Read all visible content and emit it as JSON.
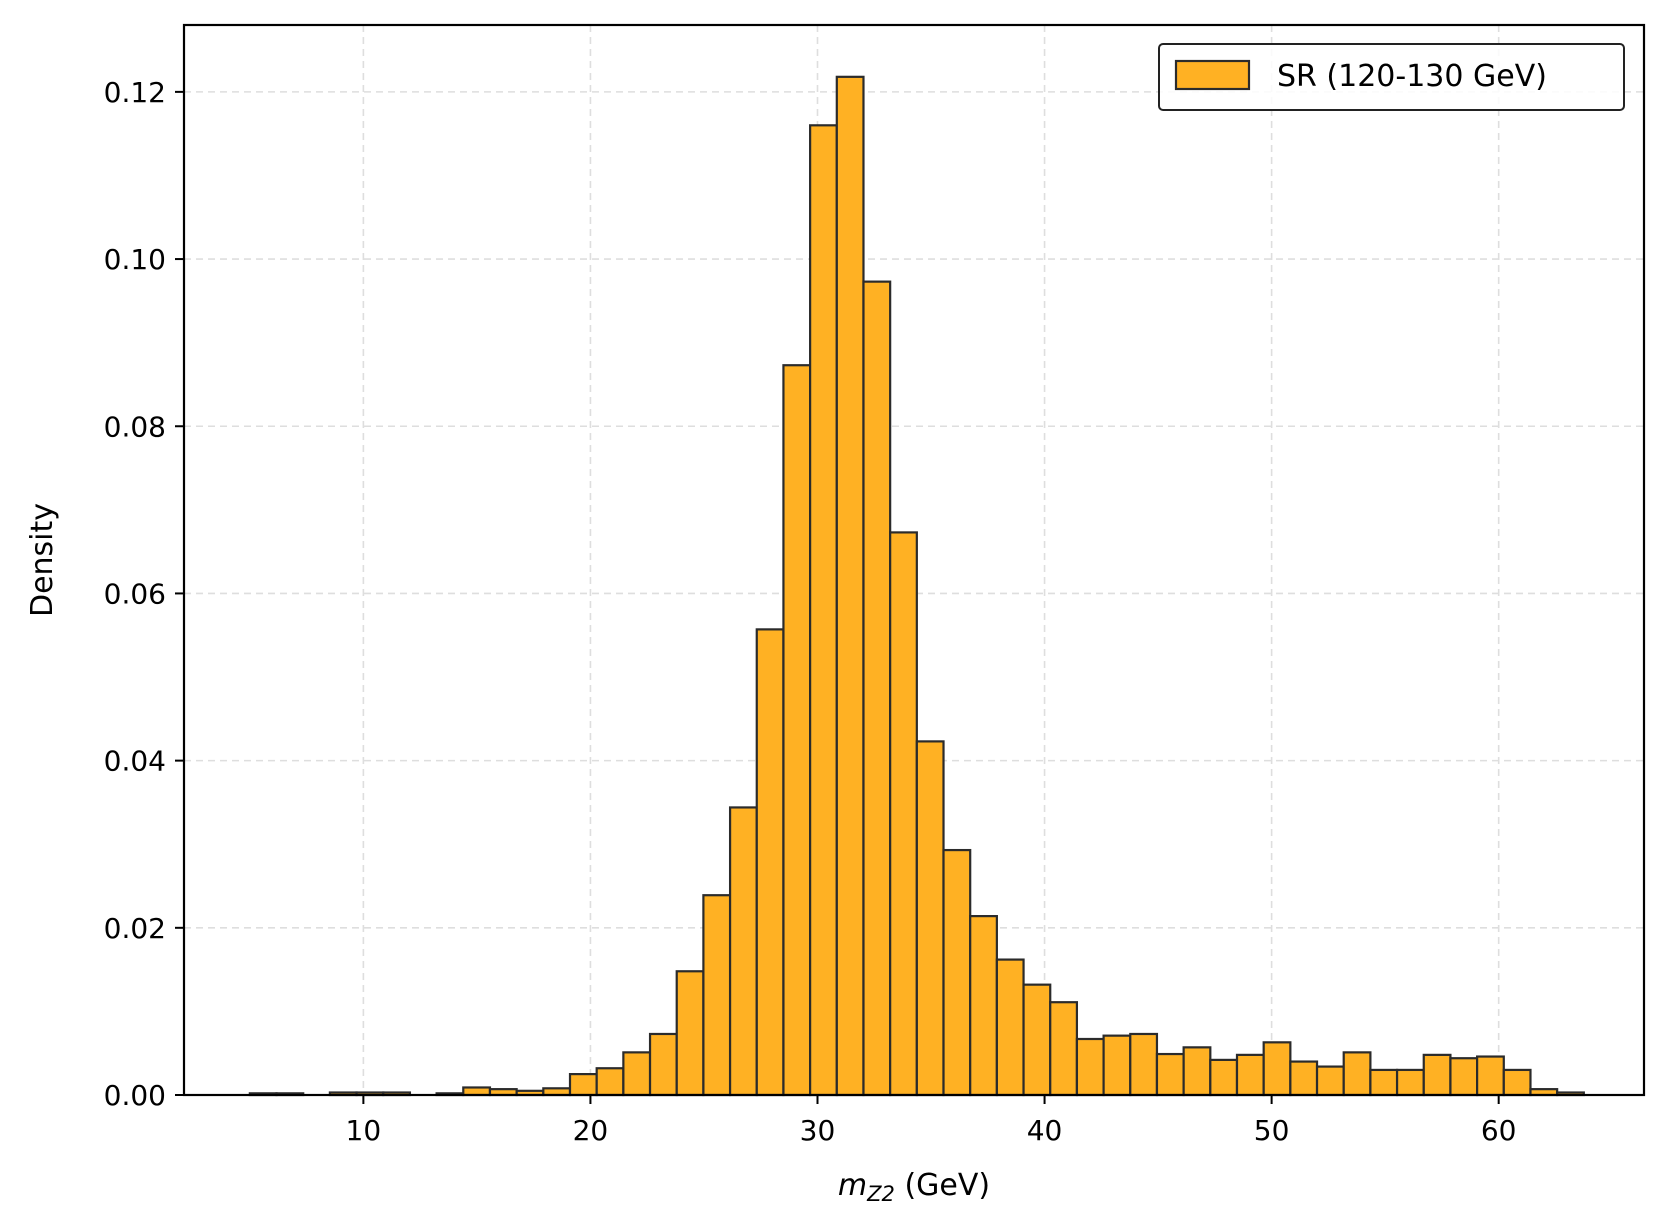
{
  "chart_data": {
    "type": "bar",
    "histogram": true,
    "bin_start": 5.0,
    "bin_width": 1.175,
    "values": [
      0.0002,
      0.0002,
      0.0,
      0.0003,
      0.0003,
      0.0003,
      0.0,
      0.0002,
      0.0009,
      0.0007,
      0.0005,
      0.0008,
      0.0025,
      0.0032,
      0.0051,
      0.0073,
      0.0148,
      0.0239,
      0.0344,
      0.0557,
      0.0873,
      0.116,
      0.1218,
      0.0973,
      0.0673,
      0.0423,
      0.0293,
      0.0214,
      0.0162,
      0.0132,
      0.0111,
      0.0067,
      0.0071,
      0.0073,
      0.0049,
      0.0057,
      0.0042,
      0.0048,
      0.0063,
      0.004,
      0.0034,
      0.0051,
      0.003,
      0.003,
      0.0048,
      0.0044,
      0.0046,
      0.003,
      0.0007,
      0.0003
    ],
    "xlabel_main": "m",
    "xlabel_sub": "Z2",
    "xlabel_unit": " (GeV)",
    "ylabel": "Density",
    "xlim": [
      2.1,
      66.4
    ],
    "ylim": [
      0,
      0.128
    ],
    "xticks": [
      10,
      20,
      30,
      40,
      50,
      60
    ],
    "xtick_labels": [
      "10",
      "20",
      "30",
      "40",
      "50",
      "60"
    ],
    "yticks": [
      0,
      0.02,
      0.04,
      0.06,
      0.08,
      0.1,
      0.12
    ],
    "ytick_labels": [
      "0.00",
      "0.02",
      "0.04",
      "0.06",
      "0.08",
      "0.10",
      "0.12"
    ],
    "grid": true,
    "legend_position": "top-right",
    "series": [
      {
        "name": "SR (120-130 GeV)",
        "color": "#ffb123",
        "edge_color": "#2b2b2b"
      }
    ]
  }
}
